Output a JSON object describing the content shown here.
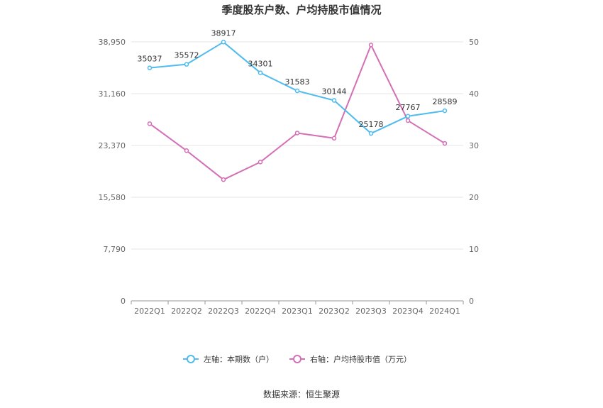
{
  "chart_data": {
    "type": "line",
    "title": "季度股东户数、户均持股市值情况",
    "categories": [
      "2022Q1",
      "2022Q2",
      "2022Q3",
      "2022Q4",
      "2023Q1",
      "2023Q2",
      "2023Q3",
      "2023Q4",
      "2024Q1"
    ],
    "left_axis": {
      "ticks": [
        "0",
        "7,790",
        "15,580",
        "23,370",
        "31,160",
        "38,950"
      ],
      "ylim": [
        0,
        38950
      ]
    },
    "right_axis": {
      "ticks": [
        "0",
        "10",
        "20",
        "30",
        "40",
        "50"
      ],
      "ylim": [
        0,
        50
      ]
    },
    "series": [
      {
        "name": "左轴：本期数（户）",
        "axis": "left",
        "color": "#4fbbee",
        "values": [
          35037,
          35572,
          38917,
          34301,
          31583,
          30144,
          25178,
          27767,
          28589
        ],
        "labels": [
          "35037",
          "35572",
          "38917",
          "34301",
          "31583",
          "30144",
          "25178",
          "27767",
          "28589"
        ]
      },
      {
        "name": "右轴：户均持股市值（万元）",
        "axis": "right",
        "color": "#d46fb6",
        "values": [
          34.2,
          29.0,
          23.4,
          26.8,
          32.4,
          31.4,
          49.4,
          34.8,
          30.4
        ]
      }
    ],
    "grid": true,
    "legend_position": "bottom"
  },
  "source": "数据来源：恒生聚源"
}
